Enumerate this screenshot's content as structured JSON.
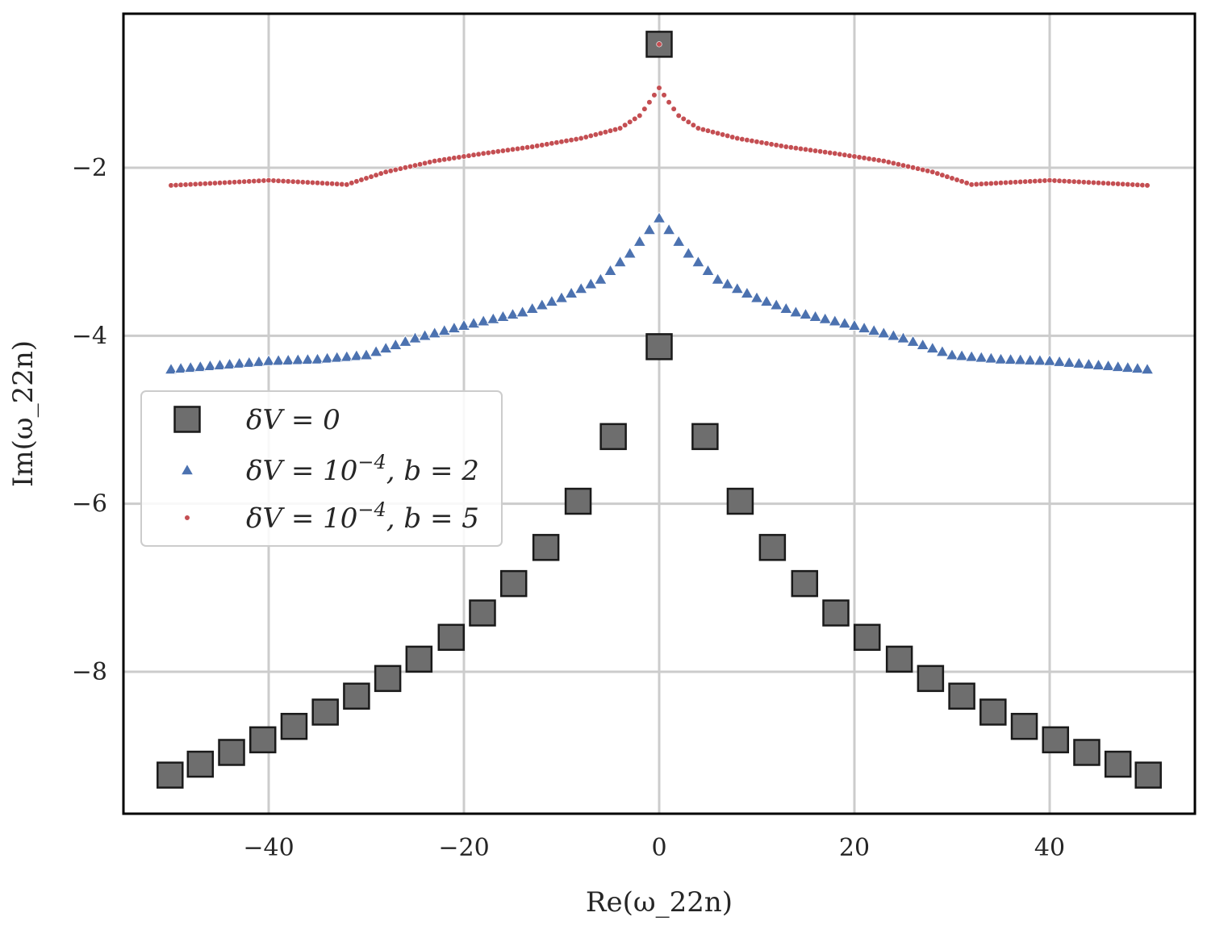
{
  "chart_data": {
    "type": "scatter",
    "title": "",
    "xlabel": "Re(ω_22n)",
    "ylabel": "Im(ω_22n)",
    "xlim": [
      -56,
      55
    ],
    "ylim": [
      -9.7,
      -0.3
    ],
    "xticks": [
      -40,
      -20,
      0,
      20,
      40
    ],
    "yticks": [
      -2,
      -4,
      -6,
      -8
    ],
    "xtick_labels": [
      "−40",
      "−20",
      "0",
      "20",
      "40"
    ],
    "ytick_labels": [
      "−2",
      "−4",
      "−6",
      "−8"
    ],
    "grid": true,
    "legend_position": "center-left",
    "series": [
      {
        "name": "δV = 0",
        "marker": "square",
        "color": "#6e6e6e",
        "edgecolor": "#1a1a1a",
        "points": [
          [
            0,
            -0.53
          ],
          [
            0,
            -4.13
          ],
          [
            -4.7,
            -5.2
          ],
          [
            4.7,
            -5.2
          ],
          [
            -8.3,
            -5.97
          ],
          [
            8.3,
            -5.97
          ],
          [
            -11.6,
            -6.52
          ],
          [
            11.6,
            -6.52
          ],
          [
            -14.9,
            -6.95
          ],
          [
            14.9,
            -6.95
          ],
          [
            -18.1,
            -7.3
          ],
          [
            18.1,
            -7.3
          ],
          [
            -21.3,
            -7.59
          ],
          [
            21.3,
            -7.59
          ],
          [
            -24.6,
            -7.85
          ],
          [
            24.6,
            -7.85
          ],
          [
            -27.8,
            -8.08
          ],
          [
            27.8,
            -8.08
          ],
          [
            -31.0,
            -8.29
          ],
          [
            31.0,
            -8.29
          ],
          [
            -34.2,
            -8.48
          ],
          [
            34.2,
            -8.48
          ],
          [
            -37.4,
            -8.65
          ],
          [
            37.4,
            -8.65
          ],
          [
            -40.6,
            -8.81
          ],
          [
            40.6,
            -8.81
          ],
          [
            -43.8,
            -8.96
          ],
          [
            43.8,
            -8.96
          ],
          [
            -47.0,
            -9.1
          ],
          [
            47.0,
            -9.1
          ],
          [
            -50.1,
            -9.23
          ],
          [
            50.1,
            -9.23
          ]
        ]
      },
      {
        "name": "δV = 10^−4, b = 2",
        "marker": "triangle",
        "color": "#4c72b0",
        "n_points": 101,
        "x_range": [
          -50,
          50
        ],
        "profile": [
          [
            0,
            -2.6
          ],
          [
            3,
            -3.02
          ],
          [
            6,
            -3.33
          ],
          [
            10,
            -3.55
          ],
          [
            14,
            -3.72
          ],
          [
            20,
            -3.88
          ],
          [
            25,
            -4.03
          ],
          [
            30,
            -4.23
          ],
          [
            35,
            -4.28
          ],
          [
            40,
            -4.3
          ],
          [
            45,
            -4.35
          ],
          [
            50,
            -4.4
          ]
        ],
        "extra_points": [
          [
            0,
            -0.53
          ]
        ]
      },
      {
        "name": "δV = 10^−4, b = 5",
        "marker": "dot",
        "color": "#c44e52",
        "n_points": 201,
        "x_range": [
          -50,
          50
        ],
        "profile": [
          [
            0,
            -1.05
          ],
          [
            1,
            -1.22
          ],
          [
            2,
            -1.38
          ],
          [
            4,
            -1.53
          ],
          [
            8,
            -1.65
          ],
          [
            13,
            -1.75
          ],
          [
            18,
            -1.83
          ],
          [
            23,
            -1.92
          ],
          [
            28,
            -2.05
          ],
          [
            32,
            -2.2
          ],
          [
            35,
            -2.18
          ],
          [
            40,
            -2.15
          ],
          [
            45,
            -2.18
          ],
          [
            50,
            -2.21
          ]
        ],
        "extra_points": [
          [
            0,
            -0.53
          ]
        ]
      }
    ],
    "legend": [
      {
        "label_prefix": "δV = 0",
        "label_sup": "",
        "label_suffix": ""
      },
      {
        "label_prefix": "δV = 10",
        "label_sup": "−4",
        "label_suffix": ", b = 2"
      },
      {
        "label_prefix": "δV = 10",
        "label_sup": "−4",
        "label_suffix": ", b = 5"
      }
    ]
  }
}
